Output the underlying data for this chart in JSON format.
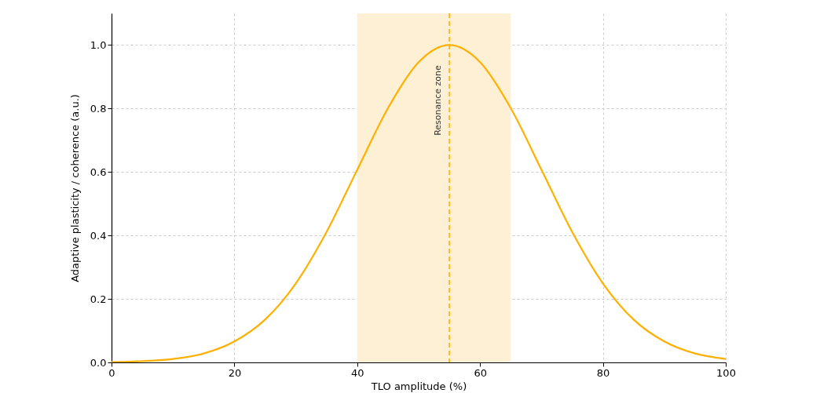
{
  "chart_data": {
    "type": "line",
    "xlabel": "TLO amplitude (%)",
    "ylabel": "Adaptive plasticity / coherence (a.u.)",
    "x": [
      0,
      5,
      10,
      15,
      20,
      25,
      30,
      35,
      40,
      45,
      50,
      55,
      60,
      65,
      70,
      75,
      80,
      85,
      90,
      95,
      100
    ],
    "series": [
      {
        "color": "#ffb000",
        "values": [
          0.001,
          0.004,
          0.011,
          0.028,
          0.066,
          0.135,
          0.249,
          0.411,
          0.607,
          0.801,
          0.946,
          1.0,
          0.946,
          0.801,
          0.607,
          0.411,
          0.249,
          0.135,
          0.066,
          0.028,
          0.011
        ]
      }
    ],
    "xlim": [
      0,
      100
    ],
    "ylim": [
      0,
      1.1
    ],
    "xticks": [
      0,
      20,
      40,
      60,
      80,
      100
    ],
    "yticks": [
      {
        "value": 0,
        "label": "0.0"
      },
      0.2,
      0.4,
      0.6,
      0.8,
      {
        "value": 1,
        "label": "1.0"
      }
    ],
    "grid": true,
    "line_style": "solid",
    "marker": "none",
    "bands": [
      {
        "axis": "x",
        "from": 40,
        "to": 65,
        "color": "#fdf0d5"
      }
    ],
    "ref_lines": [
      {
        "axis": "x",
        "value": 55,
        "label": "Resonance zone",
        "color": "#ffb000",
        "line_style": "dashed"
      }
    ]
  }
}
